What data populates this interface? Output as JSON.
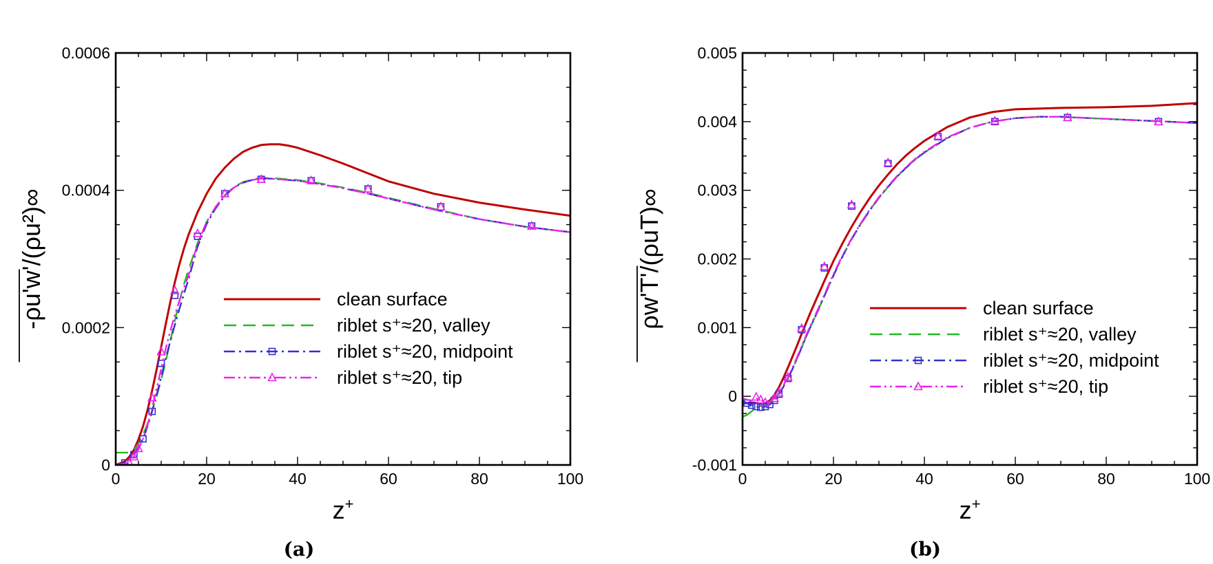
{
  "chart_data": [
    {
      "type": "line",
      "panel_label": "(a)",
      "xlabel": "z",
      "xlabel_sup": "+",
      "ylabel": "-ρu'w'/(ρu²)∞",
      "xlim": [
        0,
        100
      ],
      "ylim": [
        0,
        0.0006
      ],
      "xticks": [
        0,
        20,
        40,
        60,
        80,
        100
      ],
      "xtick_labels": [
        "0",
        "20",
        "40",
        "60",
        "80",
        "100"
      ],
      "yticks": [
        0,
        0.0002,
        0.0004,
        0.0006
      ],
      "ytick_labels": [
        "0",
        "0.0002",
        "0.0004",
        "0.0006"
      ],
      "legend_placement": "center-right",
      "series": [
        {
          "name": "clean surface",
          "color": "#c00000",
          "style": "solid",
          "marker": "none",
          "x": [
            0,
            2,
            3,
            4,
            5,
            6,
            7,
            8,
            9,
            10,
            11,
            12,
            13,
            14,
            15,
            16,
            18,
            20,
            22,
            24,
            26,
            28,
            30,
            32,
            34,
            36,
            38,
            40,
            45,
            50,
            55,
            60,
            70,
            80,
            90,
            100
          ],
          "y": [
            0,
            5e-06,
            1.2e-05,
            2.2e-05,
            3.7e-05,
            5.6e-05,
            8e-05,
            0.000108,
            0.000139,
            0.000172,
            0.000205,
            0.000237,
            0.000266,
            0.000292,
            0.000315,
            0.000335,
            0.000368,
            0.000395,
            0.000417,
            0.000433,
            0.000446,
            0.000456,
            0.000462,
            0.000466,
            0.000467,
            0.000467,
            0.000465,
            0.000462,
            0.000451,
            0.000439,
            0.000426,
            0.000413,
            0.000395,
            0.000382,
            0.000372,
            0.000363
          ]
        },
        {
          "name": "riblet s⁺≈20, valley",
          "color": "#22bb22",
          "style": "dashed",
          "marker": "none",
          "x": [
            0,
            2,
            3,
            4,
            5,
            6,
            7,
            8,
            9,
            10,
            11,
            12,
            13,
            14,
            15,
            16,
            18,
            20,
            22,
            24,
            26,
            28,
            30,
            32,
            34,
            36,
            38,
            40,
            45,
            50,
            55,
            60,
            70,
            80,
            90,
            100
          ],
          "y": [
            1.8e-05,
            1.8e-05,
            1.8e-05,
            2.2e-05,
            3.1e-05,
            4.4e-05,
            6e-05,
            7.9e-05,
            0.0001,
            0.000124,
            0.000151,
            0.00018,
            0.00021,
            0.000238,
            0.000263,
            0.000284,
            0.000323,
            0.000354,
            0.000376,
            0.000393,
            0.000405,
            0.000412,
            0.000416,
            0.000418,
            0.000418,
            0.000417,
            0.000416,
            0.000415,
            0.00041,
            0.000404,
            0.000397,
            0.000389,
            0.000373,
            0.000358,
            0.000347,
            0.000339
          ]
        },
        {
          "name": "riblet s⁺≈20, midpoint",
          "color": "#3030cc",
          "style": "dashdot",
          "marker": "square",
          "x": [
            0,
            2,
            3,
            4,
            5,
            6,
            7,
            8,
            9,
            10,
            11,
            12,
            13,
            14,
            15,
            16,
            18,
            20,
            22,
            24,
            26,
            28,
            30,
            32,
            34,
            36,
            38,
            40,
            45,
            50,
            55,
            60,
            70,
            80,
            90,
            100
          ],
          "y": [
            0,
            3e-06,
            8e-06,
            1.5e-05,
            2.5e-05,
            3.8e-05,
            5.6e-05,
            7.8e-05,
            0.000102,
            0.000128,
            0.000155,
            0.00018,
            0.000204,
            0.000227,
            0.000249,
            0.00027,
            0.000318,
            0.000351,
            0.000374,
            0.000392,
            0.000404,
            0.000411,
            0.000415,
            0.000417,
            0.000417,
            0.000416,
            0.000415,
            0.000414,
            0.000409,
            0.000403,
            0.000396,
            0.000388,
            0.000372,
            0.000358,
            0.000347,
            0.000339
          ],
          "marker_x": [
            2,
            4,
            6,
            8,
            10,
            13,
            18,
            24,
            32,
            43,
            55.5,
            71.5,
            91.5
          ],
          "marker_y": [
            3e-06,
            1.5e-05,
            3.8e-05,
            7.8e-05,
            0.000148,
            0.000247,
            0.000333,
            0.000395,
            0.000416,
            0.000414,
            0.000402,
            0.000376,
            0.000348
          ]
        },
        {
          "name": "riblet s⁺≈20, tip",
          "color": "#ee22ee",
          "style": "dashdotdot",
          "marker": "triangle",
          "x": [
            0,
            2,
            3,
            4,
            5,
            6,
            7,
            8,
            9,
            10,
            11,
            12,
            13,
            14,
            15,
            16,
            18,
            20,
            22,
            24,
            26,
            28,
            30,
            32,
            34,
            36,
            38,
            40,
            45,
            50,
            55,
            60,
            70,
            80,
            90,
            100
          ],
          "y": [
            0,
            2e-06,
            5e-06,
            1.2e-05,
            2.3e-05,
            3.8e-05,
            5.8e-05,
            8.3e-05,
            0.000111,
            0.00014,
            0.000169,
            0.000195,
            0.000218,
            0.000239,
            0.000258,
            0.000276,
            0.000322,
            0.000354,
            0.000376,
            0.000393,
            0.000404,
            0.000411,
            0.000415,
            0.000417,
            0.000417,
            0.000416,
            0.000415,
            0.000414,
            0.000409,
            0.000403,
            0.000396,
            0.000388,
            0.000372,
            0.000358,
            0.000347,
            0.000339
          ],
          "marker_x": [
            3,
            4,
            5,
            8,
            10,
            13,
            18,
            24,
            32,
            43,
            55.5,
            71.5,
            91.5
          ],
          "marker_y": [
            3e-06,
            1.2e-05,
            2.4e-05,
            9.8e-05,
            0.000165,
            0.000254,
            0.000337,
            0.000395,
            0.000416,
            0.000414,
            0.000402,
            0.000376,
            0.000348
          ]
        }
      ]
    },
    {
      "type": "line",
      "panel_label": "(b)",
      "xlabel": "z",
      "xlabel_sup": "+",
      "ylabel": "ρw'T'/(ρuT)∞",
      "xlim": [
        0,
        100
      ],
      "ylim": [
        -0.001,
        0.005
      ],
      "xticks": [
        0,
        20,
        40,
        60,
        80,
        100
      ],
      "xtick_labels": [
        "0",
        "20",
        "40",
        "60",
        "80",
        "100"
      ],
      "yticks": [
        -0.001,
        0,
        0.001,
        0.002,
        0.003,
        0.004,
        0.005
      ],
      "ytick_labels": [
        "-0.001",
        "0",
        "0.001",
        "0.002",
        "0.003",
        "0.004",
        "0.005"
      ],
      "legend_placement": "center-right",
      "series": [
        {
          "name": "clean surface",
          "color": "#c00000",
          "style": "solid",
          "marker": "none",
          "x": [
            0,
            2,
            3,
            4,
            5,
            6,
            7,
            8,
            9,
            10,
            11,
            12,
            13,
            14,
            15,
            16,
            18,
            20,
            22,
            24,
            26,
            28,
            30,
            32,
            34,
            36,
            38,
            40,
            45,
            50,
            55,
            60,
            70,
            80,
            90,
            100
          ],
          "y": [
            -0.0001,
            -0.0001,
            -0.0001,
            -0.00011,
            -0.0001,
            -6e-05,
            2e-05,
            0.00013,
            0.00027,
            0.00042,
            0.00058,
            0.00074,
            0.00091,
            0.00107,
            0.00123,
            0.00138,
            0.00168,
            0.00197,
            0.00223,
            0.00247,
            0.00269,
            0.00289,
            0.00307,
            0.00323,
            0.00338,
            0.00351,
            0.00362,
            0.00372,
            0.00392,
            0.00406,
            0.00414,
            0.00418,
            0.0042,
            0.00421,
            0.00423,
            0.00427
          ]
        },
        {
          "name": "riblet s⁺≈20, valley",
          "color": "#22bb22",
          "style": "dashed",
          "marker": "none",
          "x": [
            0,
            1,
            2,
            3,
            4,
            5,
            6,
            7,
            8,
            9,
            10,
            11,
            12,
            13,
            14,
            15,
            16,
            18,
            20,
            22,
            24,
            26,
            28,
            30,
            32,
            34,
            36,
            38,
            40,
            45,
            50,
            55,
            60,
            65,
            70,
            80,
            90,
            100
          ],
          "y": [
            -0.0003,
            -0.00027,
            -0.00022,
            -0.00017,
            -0.00014,
            -0.00012,
            -9e-05,
            -4e-05,
            4e-05,
            0.00014,
            0.00026,
            0.0004,
            0.00055,
            0.00071,
            0.00087,
            0.00102,
            0.00116,
            0.00146,
            0.00176,
            0.00204,
            0.00229,
            0.00251,
            0.00271,
            0.00289,
            0.00305,
            0.0032,
            0.00333,
            0.00345,
            0.00355,
            0.00376,
            0.00391,
            0.004,
            0.00405,
            0.00407,
            0.00407,
            0.00404,
            0.00401,
            0.00398
          ]
        },
        {
          "name": "riblet s⁺≈20, midpoint",
          "color": "#3030cc",
          "style": "dashdot",
          "marker": "square",
          "x": [
            0,
            1,
            2,
            3,
            4,
            5,
            6,
            7,
            8,
            9,
            10,
            11,
            12,
            13,
            14,
            15,
            16,
            18,
            20,
            22,
            24,
            26,
            28,
            30,
            32,
            34,
            36,
            38,
            40,
            45,
            50,
            55,
            60,
            65,
            70,
            80,
            90,
            100
          ],
          "y": [
            -7e-05,
            -0.0001,
            -0.00013,
            -0.00015,
            -0.00016,
            -0.00015,
            -0.00012,
            -6e-05,
            3e-05,
            0.00014,
            0.00026,
            0.0004,
            0.00055,
            0.00071,
            0.00087,
            0.00102,
            0.00116,
            0.00146,
            0.00176,
            0.00204,
            0.00229,
            0.00251,
            0.00271,
            0.00289,
            0.00305,
            0.0032,
            0.00333,
            0.00345,
            0.00355,
            0.00376,
            0.00391,
            0.004,
            0.00405,
            0.00407,
            0.00407,
            0.00404,
            0.00401,
            0.00398
          ],
          "marker_x": [
            1,
            2,
            3,
            4,
            5,
            6,
            7,
            8,
            10,
            13,
            18,
            24,
            32,
            43,
            55.5,
            71.5,
            91.5
          ],
          "marker_y": [
            -0.0001,
            -0.00013,
            -0.00015,
            -0.00016,
            -0.00015,
            -0.00012,
            -6e-05,
            3e-05,
            0.00026,
            0.00097,
            0.00187,
            0.00277,
            0.00339,
            0.00378,
            0.004,
            0.00406,
            0.004
          ]
        },
        {
          "name": "riblet s⁺≈20, tip",
          "color": "#ee22ee",
          "style": "dashdotdot",
          "marker": "triangle",
          "x": [
            0,
            1,
            2,
            3,
            4,
            5,
            6,
            7,
            8,
            9,
            10,
            11,
            12,
            13,
            14,
            15,
            16,
            18,
            20,
            22,
            24,
            26,
            28,
            30,
            32,
            34,
            36,
            38,
            40,
            45,
            50,
            55,
            60,
            65,
            70,
            80,
            90,
            100
          ],
          "y": [
            -3e-05,
            -5e-05,
            -6e-05,
            -3e-05,
            -5e-05,
            -9e-05,
            -8e-05,
            -3e-05,
            5e-05,
            0.00016,
            0.00028,
            0.00042,
            0.00057,
            0.00073,
            0.00089,
            0.00104,
            0.00118,
            0.00148,
            0.00178,
            0.00205,
            0.0023,
            0.00252,
            0.00272,
            0.0029,
            0.00306,
            0.00321,
            0.00334,
            0.00346,
            0.00356,
            0.00377,
            0.00391,
            0.004,
            0.00405,
            0.00407,
            0.00407,
            0.00404,
            0.00401,
            0.00398
          ],
          "marker_x": [
            3,
            4,
            5,
            7,
            8,
            10,
            13,
            18,
            24,
            32,
            43,
            55.5,
            71.5,
            91.5
          ],
          "marker_y": [
            -1e-05,
            -5e-05,
            -9e-05,
            -3e-05,
            5e-05,
            0.00028,
            0.00099,
            0.00189,
            0.00279,
            0.0034,
            0.00379,
            0.00401,
            0.00406,
            0.004
          ]
        }
      ]
    }
  ]
}
